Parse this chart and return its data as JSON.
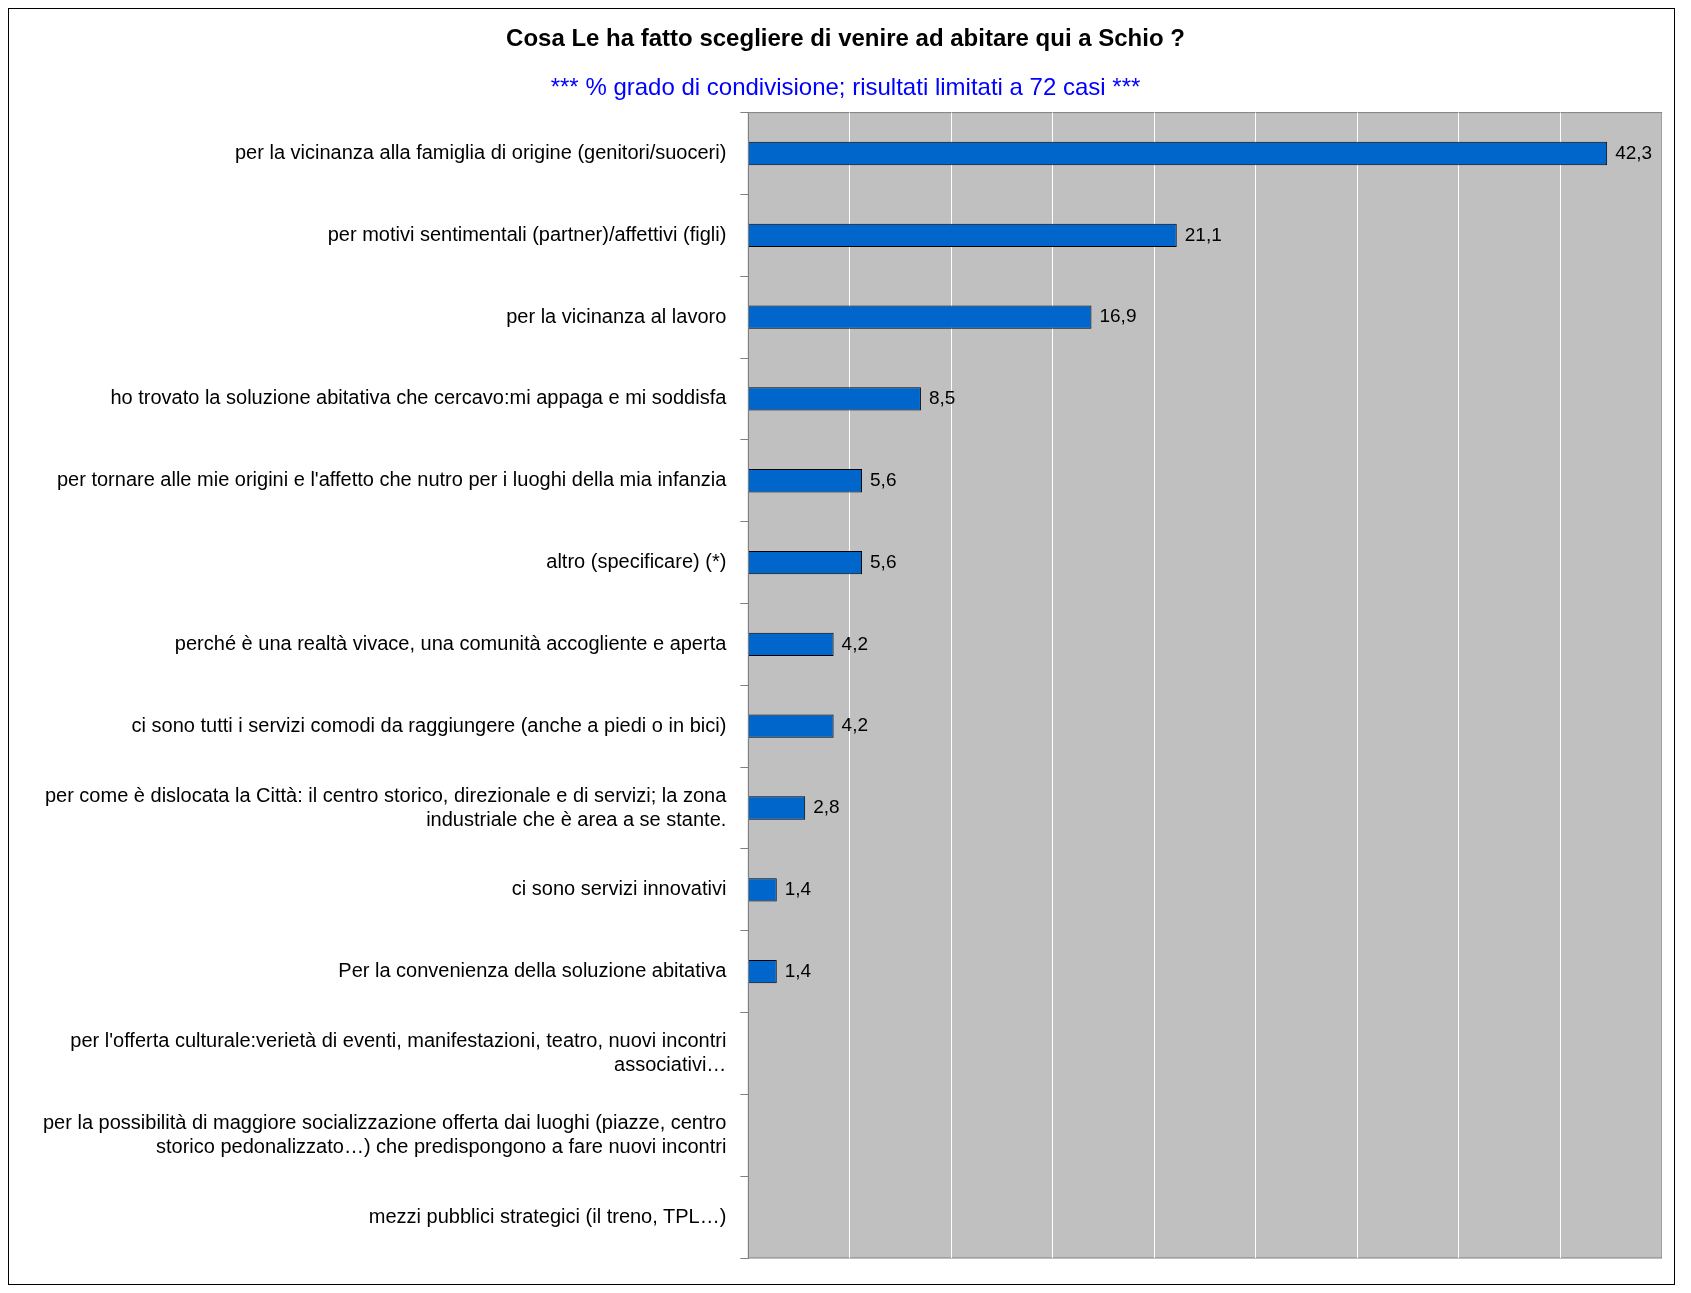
{
  "chart_data": {
    "type": "bar",
    "orientation": "horizontal",
    "title": "Cosa Le ha fatto scegliere di venire ad abitare qui a Schio ?",
    "subtitle": "*** % grado di condivisione; risultati limitati a 72 casi ***",
    "categories": [
      "per la vicinanza alla famiglia di origine (genitori/suoceri)",
      "per motivi sentimentali (partner)/affettivi (figli)",
      "per la vicinanza al lavoro",
      "ho trovato la soluzione abitativa che cercavo:mi appaga e mi soddisfa",
      "per tornare alle mie origini e l'affetto che nutro per i luoghi della mia infanzia",
      "altro (specificare) (*)",
      "perché è una realtà vivace, una comunità accogliente e aperta",
      "ci sono tutti i servizi comodi da raggiungere (anche a piedi o in bici)",
      "per come è dislocata la Città: il centro storico, direzionale e di servizi; la zona industriale che è area a se stante.",
      "ci sono servizi innovativi",
      "Per la convenienza della soluzione abitativa",
      "per l'offerta culturale:verietà di eventi, manifestazioni, teatro, nuovi incontri associativi…",
      "per la possibilità di maggiore socializzazione offerta dai luoghi (piazze, centro storico pedonalizzato…) che predispongono a fare nuovi incontri",
      "mezzi pubblici strategici (il treno, TPL…)"
    ],
    "values": [
      42.3,
      21.1,
      16.9,
      8.5,
      5.6,
      5.6,
      4.2,
      4.2,
      2.8,
      1.4,
      1.4,
      null,
      null,
      null
    ],
    "value_labels": [
      "42,3",
      "21,1",
      "16,9",
      "8,5",
      "5,6",
      "5,6",
      "4,2",
      "4,2",
      "2,8",
      "1,4",
      "1,4",
      null,
      null,
      null
    ],
    "color": "#0066cc",
    "grid": "x",
    "tick_labels": "y",
    "legend": false
  }
}
